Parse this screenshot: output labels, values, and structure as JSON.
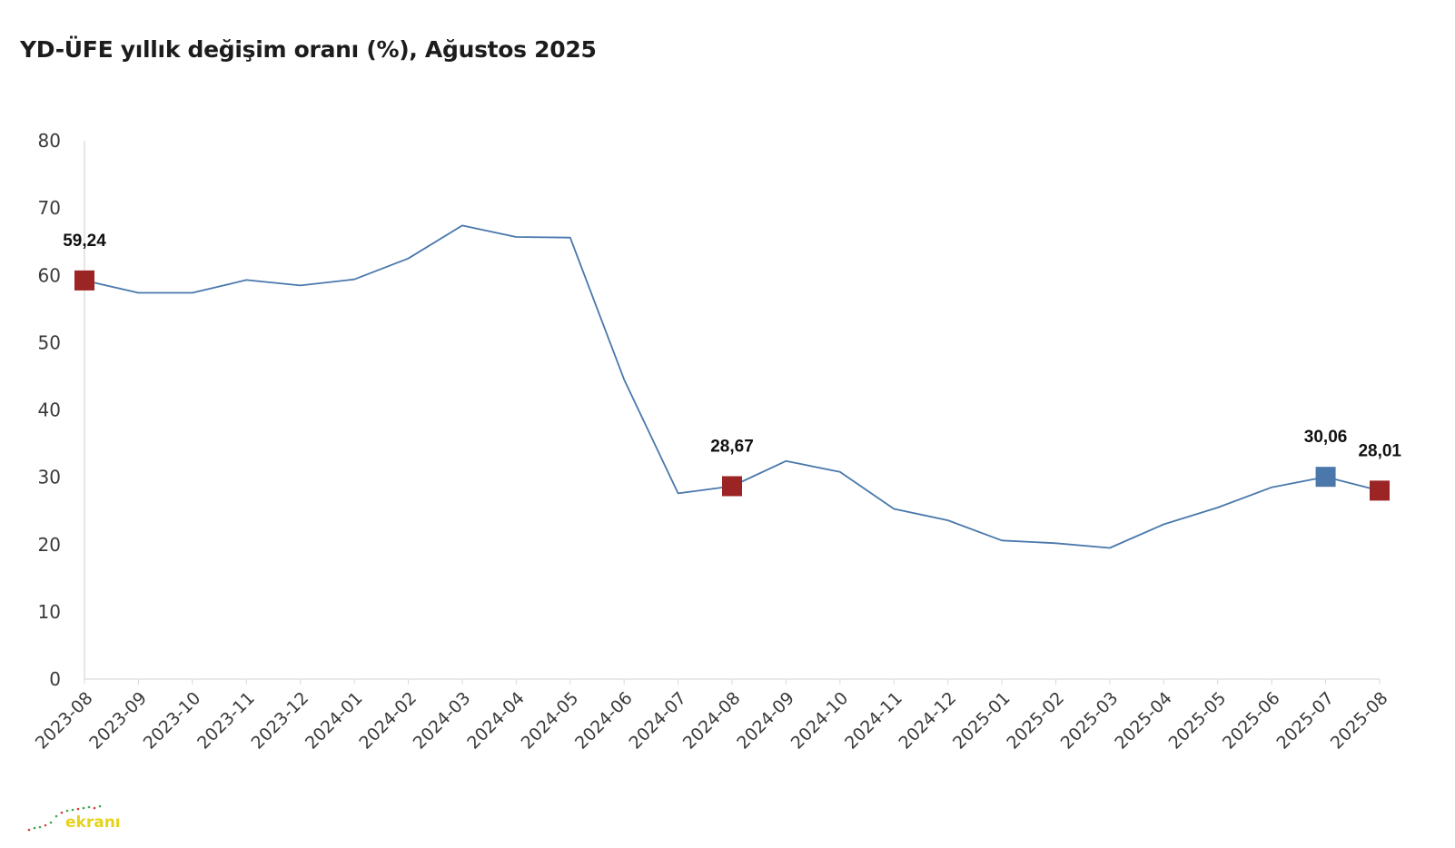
{
  "chart_data": {
    "type": "line",
    "title": "YD-ÜFE yıllık değişim oranı (%), Ağustos 2025",
    "xlabel": "",
    "ylabel": "",
    "ylim": [
      0,
      80
    ],
    "yticks": [
      "0",
      "10",
      "20",
      "30",
      "40",
      "50",
      "60",
      "70",
      "80"
    ],
    "grid": false,
    "legend": "none",
    "line_color": "#4a78ab",
    "categories": [
      "2023-08",
      "2023-09",
      "2023-10",
      "2023-11",
      "2023-12",
      "2024-01",
      "2024-02",
      "2024-03",
      "2024-04",
      "2024-05",
      "2024-06",
      "2024-07",
      "2024-08",
      "2024-09",
      "2024-10",
      "2024-11",
      "2024-12",
      "2025-01",
      "2025-02",
      "2025-03",
      "2025-04",
      "2025-05",
      "2025-06",
      "2025-07",
      "2025-08"
    ],
    "series": [
      {
        "values": [
          59.24,
          57.4,
          57.4,
          59.3,
          58.5,
          59.4,
          62.5,
          67.4,
          65.7,
          65.6,
          44.5,
          27.6,
          28.67,
          32.4,
          30.8,
          25.3,
          23.6,
          20.6,
          20.2,
          19.5,
          23.0,
          25.5,
          28.5,
          30.06,
          28.01
        ]
      }
    ],
    "highlights": [
      {
        "index": 0,
        "label": "59,24",
        "color": "#9b2424"
      },
      {
        "index": 12,
        "label": "28,67",
        "color": "#9b2424"
      },
      {
        "index": 23,
        "label": "30,06",
        "color": "#4a78ab"
      },
      {
        "index": 24,
        "label": "28,01",
        "color": "#9b2424"
      }
    ]
  },
  "watermark": {
    "text": "ekranı",
    "color": "#e6d21a",
    "dot_color": "#3aa84a"
  }
}
